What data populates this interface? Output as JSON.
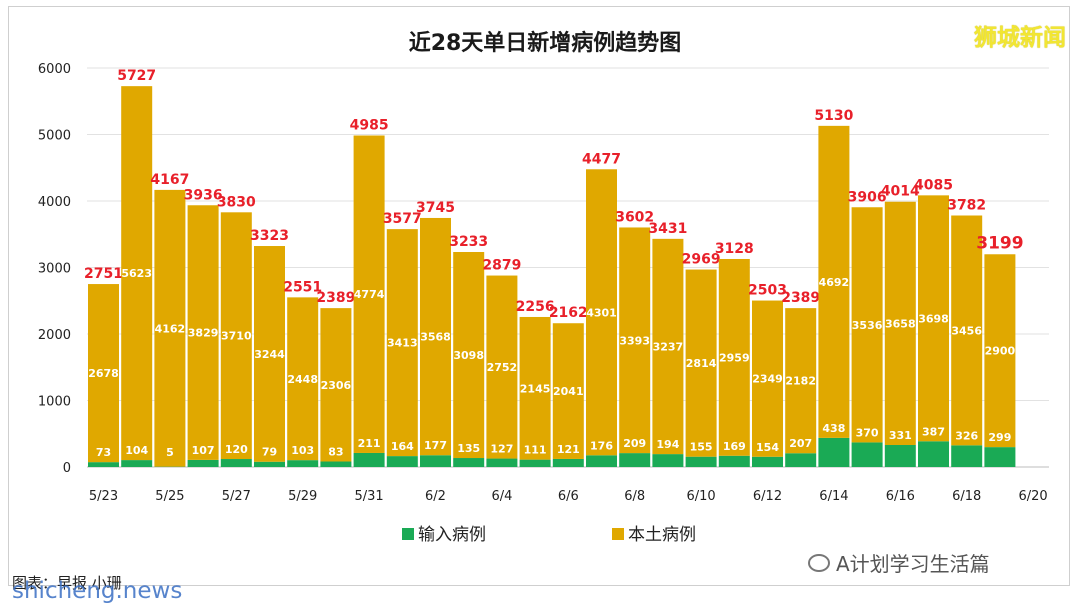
{
  "watermark": "狮城新闻",
  "footer": {
    "wechat_label": "A计划学习生活篇",
    "caption": "图表：早报 小珊",
    "site": "shicheng.news"
  },
  "chart_data": {
    "type": "bar",
    "stacked": true,
    "title": "近28天单日新增病例趋势图",
    "xlabel": "",
    "ylabel": "",
    "ylim": [
      0,
      6000
    ],
    "yticks": [
      0,
      1000,
      2000,
      3000,
      4000,
      5000,
      6000
    ],
    "grid": true,
    "legend_position": "bottom",
    "categories": [
      "5/23",
      "5/24",
      "5/25",
      "5/26",
      "5/27",
      "5/28",
      "5/29",
      "5/30",
      "5/31",
      "6/1",
      "6/2",
      "6/3",
      "6/4",
      "6/5",
      "6/6",
      "6/7",
      "6/8",
      "6/9",
      "6/10",
      "6/11",
      "6/12",
      "6/13",
      "6/14",
      "6/15",
      "6/16",
      "6/17",
      "6/18",
      "6/19"
    ],
    "xtick_labels": [
      "5/23",
      "5/25",
      "5/27",
      "5/29",
      "5/31",
      "6/2",
      "6/4",
      "6/6",
      "6/8",
      "6/10",
      "6/12",
      "6/14",
      "6/16",
      "6/18",
      "6/20"
    ],
    "series": [
      {
        "name": "输入病例",
        "color": "#1aaa55",
        "values": [
          73,
          104,
          5,
          107,
          120,
          79,
          103,
          83,
          211,
          164,
          177,
          135,
          127,
          111,
          121,
          176,
          209,
          194,
          155,
          169,
          154,
          207,
          438,
          370,
          331,
          387,
          326,
          299
        ]
      },
      {
        "name": "本土病例",
        "color": "#e0a800",
        "values": [
          2678,
          5623,
          4162,
          3829,
          3710,
          3244,
          2448,
          2306,
          4774,
          3413,
          3568,
          3098,
          2752,
          2145,
          2041,
          4301,
          3393,
          3237,
          2814,
          2959,
          2349,
          2182,
          4692,
          3536,
          3658,
          3698,
          3456,
          2900
        ]
      }
    ],
    "totals": [
      2751,
      5727,
      4167,
      3936,
      3830,
      3323,
      2551,
      2389,
      4985,
      3577,
      3745,
      3233,
      2879,
      2256,
      2162,
      4477,
      3602,
      3431,
      2969,
      3128,
      2503,
      2389,
      5130,
      3906,
      4014,
      4085,
      3782,
      3199
    ],
    "total_label_color": "#e8202a"
  }
}
